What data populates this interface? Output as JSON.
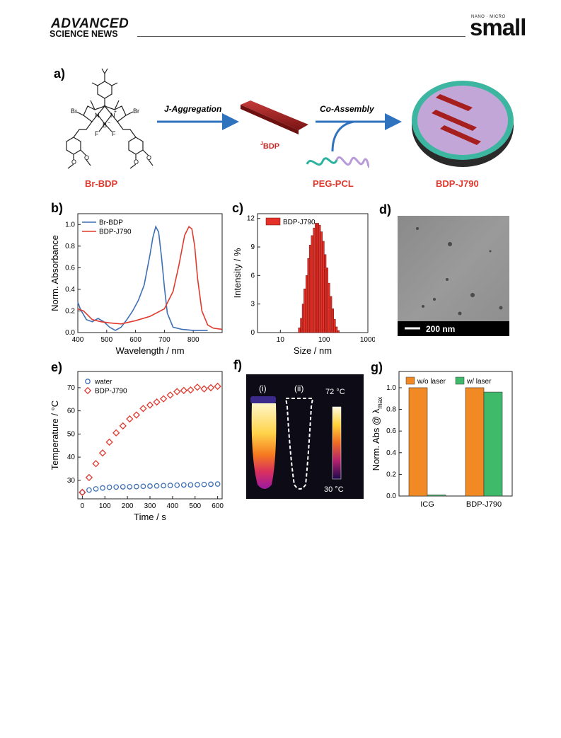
{
  "header": {
    "brand_line1": "ADVANCED",
    "brand_line2": "SCIENCE NEWS",
    "journal_sub": "NANO · MICRO",
    "journal": "small"
  },
  "panel_a": {
    "label": "a)",
    "step1": "J-Aggregation",
    "step2": "Co-Assembly",
    "aggregate": "BDP",
    "aggregate_prefix": "J",
    "names": [
      "Br-BDP",
      "PEG-PCL",
      "BDP-J790"
    ],
    "atoms": {
      "br": "Br",
      "n": "N",
      "b": "B",
      "f": "F",
      "o": "O",
      "plus": "+",
      "minus": "−"
    }
  },
  "panel_d": {
    "label": "d)",
    "scale_bar": "200 nm"
  },
  "panel_f": {
    "label": "f)",
    "tube_labels": [
      "(i)",
      "(ii)"
    ],
    "color_max": "72 °C",
    "color_min": "30 °C"
  },
  "chart_data": [
    {
      "panel": "b)",
      "type": "line",
      "xlabel": "Wavelength / nm",
      "ylabel": "Norm. Absorbance",
      "xlim": [
        400,
        900
      ],
      "ylim": [
        0,
        1.1
      ],
      "xticks": [
        400,
        500,
        600,
        700,
        800
      ],
      "yticks": [
        0.0,
        0.2,
        0.4,
        0.6,
        0.8,
        1.0
      ],
      "legend": "top-left",
      "series": [
        {
          "name": "Br-BDP",
          "color": "#3e6fb4",
          "x": [
            400,
            410,
            430,
            450,
            470,
            490,
            510,
            530,
            550,
            570,
            590,
            610,
            630,
            650,
            660,
            670,
            680,
            690,
            700,
            710,
            730,
            760,
            800,
            850
          ],
          "y": [
            0.28,
            0.21,
            0.12,
            0.1,
            0.13,
            0.1,
            0.05,
            0.02,
            0.05,
            0.12,
            0.2,
            0.3,
            0.44,
            0.72,
            0.88,
            0.98,
            0.93,
            0.7,
            0.42,
            0.18,
            0.05,
            0.03,
            0.02,
            0.02
          ]
        },
        {
          "name": "BDP-J790",
          "color": "#e03a2e",
          "x": [
            400,
            420,
            450,
            480,
            510,
            550,
            600,
            650,
            700,
            730,
            750,
            770,
            785,
            795,
            805,
            815,
            830,
            850,
            870,
            900
          ],
          "y": [
            0.22,
            0.2,
            0.12,
            0.1,
            0.09,
            0.08,
            0.11,
            0.15,
            0.22,
            0.38,
            0.62,
            0.9,
            0.98,
            0.96,
            0.8,
            0.5,
            0.2,
            0.07,
            0.04,
            0.03
          ]
        }
      ]
    },
    {
      "panel": "c)",
      "type": "bar",
      "xlabel": "Size / nm",
      "ylabel": "Intensity / %",
      "xscale": "log",
      "xlim": [
        3,
        1000
      ],
      "ylim": [
        0,
        12.5
      ],
      "xticks": [
        10,
        100,
        1000
      ],
      "yticks": [
        0,
        3,
        6,
        9,
        12
      ],
      "legend": "top-left",
      "series": [
        {
          "name": "BDP-J790",
          "color": "#e53228",
          "x": [
            27,
            30,
            33,
            36,
            40,
            44,
            48,
            53,
            59,
            65,
            72,
            79,
            87,
            96,
            106,
            117,
            129,
            143,
            158,
            174,
            192,
            212
          ],
          "values": [
            0.5,
            1.5,
            3.0,
            4.6,
            6.0,
            7.8,
            9.2,
            10.2,
            11.0,
            11.5,
            11.5,
            11.3,
            10.6,
            9.6,
            8.2,
            6.8,
            5.2,
            3.8,
            2.5,
            1.4,
            0.6,
            0.2
          ]
        }
      ]
    },
    {
      "panel": "e)",
      "type": "scatter",
      "xlabel": "Time / s",
      "ylabel": "Temperature / °C",
      "xlim": [
        -20,
        620
      ],
      "ylim": [
        22,
        77
      ],
      "xticks": [
        0,
        100,
        200,
        300,
        400,
        500,
        600
      ],
      "yticks": [
        30,
        40,
        50,
        60,
        70
      ],
      "legend": "top-left",
      "series": [
        {
          "name": "water",
          "color": "#3e6fb4",
          "marker": "circle",
          "x": [
            0,
            30,
            60,
            90,
            120,
            150,
            180,
            210,
            240,
            270,
            300,
            330,
            360,
            390,
            420,
            450,
            480,
            510,
            540,
            570,
            600
          ],
          "y": [
            24.8,
            25.8,
            26.3,
            26.7,
            27.0,
            27.1,
            27.2,
            27.2,
            27.3,
            27.4,
            27.5,
            27.6,
            27.7,
            27.8,
            27.9,
            28.0,
            28.0,
            28.1,
            28.2,
            28.3,
            28.4
          ]
        },
        {
          "name": "BDP-J790",
          "color": "#e03a2e",
          "marker": "diamond",
          "x": [
            0,
            30,
            60,
            90,
            120,
            150,
            180,
            210,
            240,
            270,
            300,
            330,
            360,
            390,
            420,
            450,
            480,
            510,
            540,
            570,
            600
          ],
          "y": [
            24.8,
            31.2,
            37.2,
            41.8,
            46.5,
            50.5,
            53.5,
            56.5,
            58.2,
            61.0,
            62.5,
            63.8,
            65.2,
            66.8,
            68.3,
            68.8,
            69.0,
            70.2,
            69.5,
            70.0,
            70.6
          ]
        }
      ]
    },
    {
      "panel": "g)",
      "type": "bar",
      "ylabel": "Norm. Abs @ λmax",
      "ylabel_main": "Norm. Abs @ λ",
      "ylabel_sub": "max",
      "categories": [
        "ICG",
        "BDP-J790"
      ],
      "ylim": [
        0,
        1.15
      ],
      "yticks": [
        0.0,
        0.2,
        0.4,
        0.6,
        0.8,
        1.0
      ],
      "legend": "top",
      "series": [
        {
          "name": "w/o laser",
          "color": "#f18a24",
          "values": [
            1.0,
            1.0
          ]
        },
        {
          "name": "w/ laser",
          "color": "#3fba6a",
          "values": [
            0.01,
            0.96
          ]
        }
      ]
    }
  ]
}
